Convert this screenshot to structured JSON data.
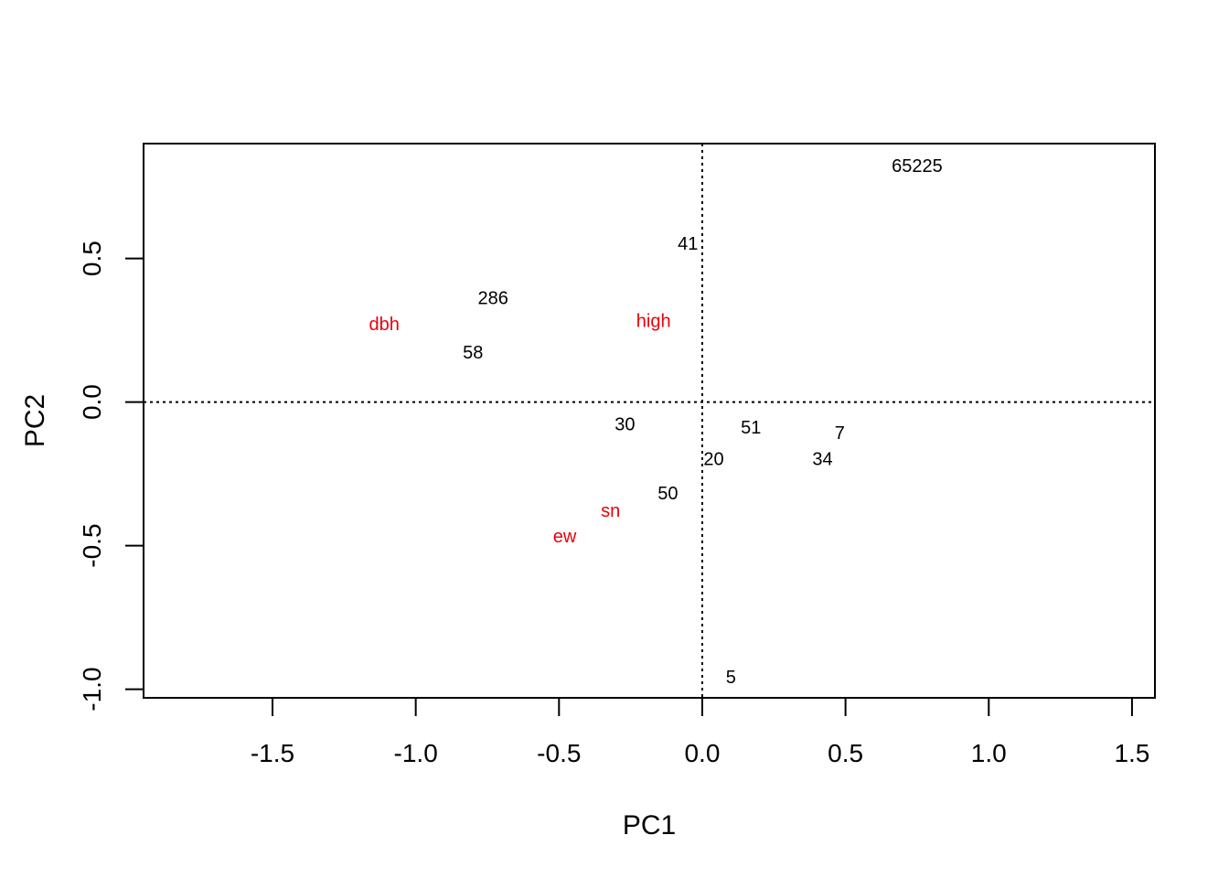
{
  "chart_data": {
    "type": "scatter",
    "title": "",
    "xlabel": "PC1",
    "ylabel": "PC2",
    "xlim": [
      -1.95,
      1.58
    ],
    "ylim": [
      -1.03,
      0.9
    ],
    "grid": false,
    "xticks": [
      -1.5,
      -1.0,
      -0.5,
      0.0,
      0.5,
      1.0,
      1.5
    ],
    "yticks": [
      -1.0,
      -0.5,
      0.0,
      0.5
    ],
    "xtick_labels": [
      "-1.5",
      "-1.0",
      "-0.5",
      "0.0",
      "0.5",
      "1.0",
      "1.5"
    ],
    "ytick_labels": [
      "-1.0",
      "-0.5",
      "0.0",
      "0.5"
    ],
    "reference_lines": {
      "x": 0,
      "y": 0,
      "style": "dotted"
    },
    "colors": {
      "observations": "#000000",
      "variables": "#e8000b"
    },
    "series": [
      {
        "points": [
          {
            "label": "65225",
            "x": 0.75,
            "y": 0.82
          },
          {
            "label": "41",
            "x": -0.05,
            "y": 0.55
          },
          {
            "label": "286",
            "x": -0.73,
            "y": 0.36
          },
          {
            "label": "58",
            "x": -0.8,
            "y": 0.17
          },
          {
            "label": "30",
            "x": -0.27,
            "y": -0.08
          },
          {
            "label": "51",
            "x": 0.17,
            "y": -0.09
          },
          {
            "label": "7",
            "x": 0.48,
            "y": -0.11
          },
          {
            "label": "34",
            "x": 0.42,
            "y": -0.2
          },
          {
            "label": "20",
            "x": 0.04,
            "y": -0.2
          },
          {
            "label": "50",
            "x": -0.12,
            "y": -0.32
          },
          {
            "label": "5",
            "x": 0.1,
            "y": -0.96
          }
        ]
      },
      {
        "points": [
          {
            "label": "dbh",
            "x": -1.11,
            "y": 0.27
          },
          {
            "label": "high",
            "x": -0.17,
            "y": 0.28
          },
          {
            "label": "sn",
            "x": -0.32,
            "y": -0.38
          },
          {
            "label": "ew",
            "x": -0.48,
            "y": -0.47
          }
        ]
      }
    ]
  }
}
